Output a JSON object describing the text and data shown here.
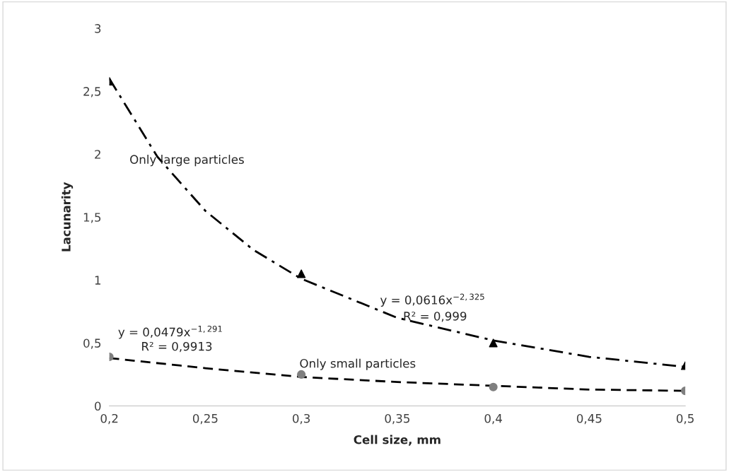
{
  "chart_data": {
    "type": "scatter",
    "xlabel": "Cell size, mm",
    "ylabel": "Lacunarity",
    "xlim": [
      0.2,
      0.5
    ],
    "ylim": [
      0,
      3
    ],
    "xticks": [
      {
        "value": 0.2,
        "label": "0,2"
      },
      {
        "value": 0.25,
        "label": "0,25"
      },
      {
        "value": 0.3,
        "label": "0,3"
      },
      {
        "value": 0.35,
        "label": "0,35"
      },
      {
        "value": 0.4,
        "label": "0,4"
      },
      {
        "value": 0.45,
        "label": "0,45"
      },
      {
        "value": 0.5,
        "label": "0,5"
      }
    ],
    "yticks": [
      0,
      {
        "value": 0.5,
        "label": "0,5"
      },
      1,
      {
        "value": 1.5,
        "label": "1,5"
      },
      2,
      {
        "value": 2.5,
        "label": "2,5"
      },
      3
    ],
    "grid": false,
    "legend": false,
    "series": [
      {
        "color": "#000000",
        "marker": "triangle",
        "x": [
          0.2,
          0.3,
          0.4,
          0.5
        ],
        "values": [
          2.58,
          1.05,
          0.5,
          0.32
        ]
      },
      {
        "color": "#7f7f7f",
        "marker": "circle",
        "x": [
          0.2,
          0.3,
          0.4,
          0.5
        ],
        "values": [
          0.39,
          0.25,
          0.15,
          0.12
        ]
      },
      {
        "type": "line",
        "color": "#000000",
        "line_style": "dashdot",
        "x": [
          0.2,
          0.225,
          0.25,
          0.275,
          0.3,
          0.35,
          0.4,
          0.45,
          0.5
        ],
        "values": [
          2.6,
          1.98,
          1.55,
          1.24,
          1.01,
          0.7,
          0.52,
          0.39,
          0.31
        ]
      },
      {
        "type": "line",
        "color": "#000000",
        "line_style": "dashed",
        "x": [
          0.2,
          0.25,
          0.3,
          0.35,
          0.4,
          0.45,
          0.5
        ],
        "values": [
          0.38,
          0.3,
          0.23,
          0.19,
          0.16,
          0.13,
          0.12
        ]
      }
    ],
    "annotations": [
      "Only large particles",
      "y = 0,0616x$^{−2,325}$",
      "R² = 0,999",
      "y = 0,0479x$^{−1,291}$",
      "R² = 0,9913",
      "Only small particles"
    ]
  }
}
